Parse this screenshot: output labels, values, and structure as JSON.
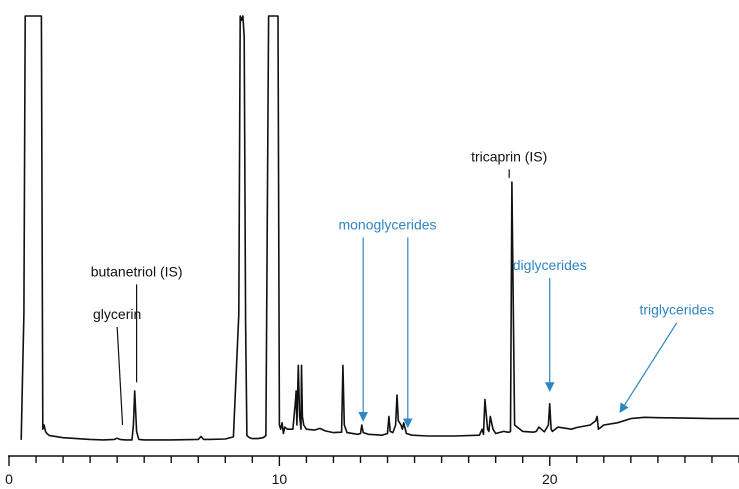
{
  "chart_data": {
    "type": "line",
    "title": "",
    "xlabel": "",
    "ylabel": "",
    "xlim": [
      0,
      27
    ],
    "ylim": [
      0,
      100
    ],
    "grid": false,
    "x_ticks": [
      0,
      10,
      20
    ],
    "x_minor_step": 1,
    "colors": {
      "trace": "#111111",
      "blue_annotation": "#2e86c1",
      "black_annotation": "#111111"
    },
    "series": [
      {
        "color": "#111111",
        "x": [
          0.45,
          0.5,
          0.55,
          0.6,
          0.65,
          0.72,
          1.0,
          1.05,
          1.1,
          1.15,
          1.2,
          1.25,
          1.3,
          1.35,
          1.4,
          1.5,
          2.0,
          2.5,
          3.0,
          3.5,
          3.9,
          4.0,
          4.1,
          4.3,
          4.55,
          4.6,
          4.65,
          4.72,
          4.8,
          5.0,
          6.0,
          7.0,
          7.1,
          7.2,
          7.4,
          8.0,
          8.3,
          8.5,
          8.55,
          8.6,
          8.65,
          8.7,
          8.75,
          8.8,
          8.9,
          9.0,
          9.2,
          9.4,
          9.5,
          9.6,
          9.65,
          9.7,
          9.75,
          9.8,
          9.9,
          9.95,
          10.0,
          10.05,
          10.1,
          10.15,
          10.2,
          10.3,
          10.5,
          10.6,
          10.62,
          10.65,
          10.7,
          10.75,
          10.8,
          10.82,
          10.85,
          10.9,
          11.0,
          11.3,
          11.5,
          11.7,
          12.0,
          12.3,
          12.35,
          12.4,
          12.5,
          12.9,
          13.0,
          13.05,
          13.1,
          13.3,
          13.8,
          14.0,
          14.05,
          14.1,
          14.2,
          14.3,
          14.35,
          14.4,
          14.5,
          14.55,
          14.6,
          14.7,
          14.9,
          15.5,
          16.5,
          17.4,
          17.5,
          17.55,
          17.6,
          17.7,
          17.75,
          17.8,
          17.9,
          18.0,
          18.3,
          18.45,
          18.5,
          18.55,
          18.6,
          18.7,
          19.0,
          19.4,
          19.5,
          19.6,
          19.8,
          19.95,
          20.0,
          20.05,
          20.1,
          20.3,
          20.8,
          21.0,
          21.5,
          21.7,
          21.75,
          21.8,
          21.9,
          22.0,
          22.5,
          23.0,
          23.5,
          24.0,
          25.0,
          26.0,
          27.0
        ],
        "y": [
          0.5,
          15,
          30,
          100,
          100,
          100,
          100,
          100,
          100,
          100,
          100,
          3,
          4,
          2.5,
          2,
          1.5,
          1,
          0.8,
          0.6,
          0.5,
          0.6,
          0.9,
          0.6,
          0.5,
          0.5,
          4,
          12,
          2.5,
          0.6,
          0.5,
          0.5,
          0.6,
          1.3,
          0.6,
          0.6,
          0.7,
          1.2,
          30,
          100,
          99,
          100,
          95,
          28,
          1.5,
          1.0,
          0.8,
          0.8,
          1.0,
          1.5,
          100,
          100,
          100,
          100,
          100,
          100,
          100,
          4,
          3,
          4.5,
          2,
          3.5,
          3,
          3,
          10,
          12,
          4,
          18,
          6,
          3,
          18,
          6,
          4,
          3,
          2.8,
          3.2,
          2.6,
          2.2,
          2.3,
          18,
          4,
          2.2,
          1.8,
          2,
          4,
          2.2,
          1.8,
          1.6,
          2,
          6,
          2.5,
          2.2,
          4,
          11,
          5,
          4,
          3,
          4.5,
          2,
          1.6,
          1.4,
          1.4,
          1.6,
          3,
          1.8,
          10,
          3,
          2.5,
          6,
          3,
          2,
          2.5,
          2.3,
          2.3,
          2.5,
          61,
          4,
          2.5,
          2.3,
          2.5,
          3.5,
          2.4,
          4,
          9,
          3,
          2.5,
          3.5,
          3,
          3.4,
          4,
          5,
          6,
          3,
          3.5,
          4,
          4.5,
          5.5,
          5.8,
          5.7,
          5.6,
          5.5,
          5.5
        ]
      }
    ],
    "annotations": [
      {
        "text": "glycerin",
        "color": "black",
        "label_x": 4.0,
        "label_y": 27,
        "point_x": 4.2,
        "point_y": 4
      },
      {
        "text": "butanetriol (IS)",
        "color": "black",
        "label_x": 4.72,
        "label_y": 37,
        "point_x": 4.72,
        "point_y": 14
      },
      {
        "text": "tricaprin (IS)",
        "color": "black",
        "label_x": 18.5,
        "label_y": 64,
        "point_x": 18.5,
        "point_y": 62
      },
      {
        "text": "monoglycerides",
        "color": "blue",
        "label_x": 13.1,
        "label_y": 48,
        "point_x": 13.1,
        "point_y": 5
      },
      {
        "text": "monoglycerides",
        "color": "blue",
        "label_x": 14.75,
        "label_y": 48,
        "point_x": 14.75,
        "point_y": 3.5,
        "arrow_only": true
      },
      {
        "text": "diglycerides",
        "color": "blue",
        "label_x": 20.0,
        "label_y": 38.5,
        "point_x": 20.0,
        "point_y": 12
      },
      {
        "text": "triglycerides",
        "color": "blue",
        "label_x": 24.7,
        "label_y": 28,
        "point_x": 22.6,
        "point_y": 7
      }
    ]
  }
}
